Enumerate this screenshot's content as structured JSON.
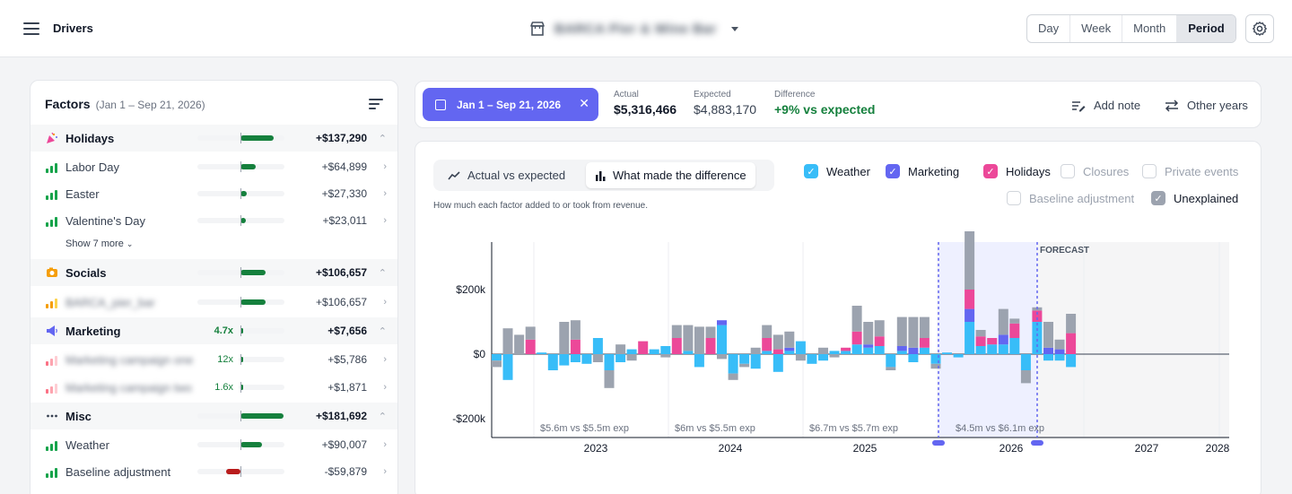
{
  "header": {
    "title": "Drivers",
    "store_name": "BARCA Pier & Wine Bar",
    "range_tabs": [
      "Day",
      "Week",
      "Month",
      "Period"
    ],
    "active_tab": "Period"
  },
  "factors": {
    "title": "Factors",
    "range": "(Jan 1 – Sep 21, 2026)",
    "show_more": "Show 7 more",
    "rows": [
      {
        "label": "Holidays",
        "value": "+$137,290",
        "fraction": 0.77,
        "group": true
      },
      {
        "label": "Labor Day",
        "value": "+$64,899",
        "fraction": 0.36
      },
      {
        "label": "Easter",
        "value": "+$27,330",
        "fraction": 0.15
      },
      {
        "label": "Valentine's Day",
        "value": "+$23,011",
        "fraction": 0.13
      },
      {
        "label": "Socials",
        "value": "+$106,657",
        "fraction": 0.59,
        "group": true
      },
      {
        "label": "BARCA_pier_bar",
        "value": "+$106,657",
        "fraction": 0.59,
        "blurred": true
      },
      {
        "label": "Marketing",
        "value": "+$7,656",
        "fraction": 0.04,
        "mult": "4.7x",
        "group": true
      },
      {
        "label": "Marketing campaign one",
        "value": "+$5,786",
        "fraction": 0.03,
        "mult": "12x",
        "blurred": true
      },
      {
        "label": "Marketing campaign two",
        "value": "+$1,871",
        "fraction": 0.01,
        "mult": "1.6x",
        "blurred": true
      },
      {
        "label": "Misc",
        "value": "+$181,692",
        "fraction": 1.0,
        "group": true
      },
      {
        "label": "Weather",
        "value": "+$90,007",
        "fraction": 0.5
      },
      {
        "label": "Baseline adjustment",
        "value": "-$59,879",
        "fraction": -0.33
      }
    ]
  },
  "summary": {
    "date_range": "Jan 1 – Sep 21, 2026",
    "actual_label": "Actual",
    "actual": "$5,316,466",
    "expected_label": "Expected",
    "expected": "$4,883,170",
    "difference_label": "Difference",
    "difference": "+9% vs expected",
    "add_note": "Add note",
    "other_years": "Other years"
  },
  "chart_panel": {
    "view_actual": "Actual vs expected",
    "view_difference": "What made the difference",
    "description": "How much each factor added to or took from revenue.",
    "filters": [
      {
        "label": "Weather",
        "checked": true,
        "color": "#38bdf8"
      },
      {
        "label": "Marketing",
        "checked": true,
        "color": "#6366f1"
      },
      {
        "label": "Holidays",
        "checked": true,
        "color": "#ec4899"
      },
      {
        "label": "Closures",
        "checked": false
      },
      {
        "label": "Private events",
        "checked": false
      },
      {
        "label": "Baseline adjustment",
        "checked": false
      },
      {
        "label": "Unexplained",
        "checked": true,
        "color": "#9ca3af"
      }
    ]
  },
  "chart_data": {
    "type": "bar",
    "stacked": true,
    "ylabel": "",
    "ylim": [
      -250000,
      340000
    ],
    "y_ticks": [
      "$200k",
      "$0",
      "-$200k"
    ],
    "y_tick_values": [
      200000,
      0,
      -200000
    ],
    "x_ticks": [
      "2023",
      "2024",
      "2025",
      "2026",
      "2027",
      "2028"
    ],
    "forecast_label": "FORECAST",
    "year_summaries": [
      {
        "year": "2023",
        "text": "$5.6m vs $5.5m exp"
      },
      {
        "year": "2024",
        "text": "$6m vs $5.5m exp"
      },
      {
        "year": "2025",
        "text": "$6.7m vs $5.7m exp"
      },
      {
        "year": "2026",
        "text": "$4.5m vs $6.1m exp"
      }
    ],
    "series_colors": {
      "weather": "#38bdf8",
      "marketing": "#6366f1",
      "holidays": "#ec4899",
      "unexplained": "#9ca3af"
    },
    "bars": [
      {
        "weather": -20000,
        "unexplained": -20000
      },
      {
        "weather": -80000,
        "unexplained": 80000
      },
      {
        "weather": 0,
        "unexplained": 60000
      },
      {
        "weather": 0,
        "holidays": 45000,
        "unexplained": 40000
      },
      {
        "weather": 5000
      },
      {
        "weather": -50000
      },
      {
        "weather": -35000,
        "unexplained": 100000
      },
      {
        "weather": -25000,
        "holidays": 45000,
        "unexplained": 60000
      },
      {
        "weather": -30000
      },
      {
        "weather": 50000,
        "unexplained": -25000
      },
      {
        "weather": -50000,
        "unexplained": -55000
      },
      {
        "weather": -25000,
        "unexplained": 30000
      },
      {
        "weather": 15000,
        "unexplained": -20000
      },
      {
        "weather": 0,
        "holidays": 40000
      },
      {
        "weather": 15000
      },
      {
        "weather": 25000,
        "unexplained": -10000
      },
      {
        "weather": 0,
        "holidays": 50000,
        "unexplained": 40000
      },
      {
        "weather": 10000,
        "unexplained": 80000
      },
      {
        "weather": -40000,
        "unexplained": 85000
      },
      {
        "weather": 0,
        "holidays": 50000,
        "unexplained": 35000
      },
      {
        "weather": 90000,
        "marketing": 15000,
        "unexplained": -15000
      },
      {
        "weather": -60000,
        "unexplained": -20000
      },
      {
        "weather": -30000,
        "unexplained": -10000
      },
      {
        "weather": -45000,
        "unexplained": 20000
      },
      {
        "weather": 10000,
        "holidays": 40000,
        "unexplained": 40000
      },
      {
        "weather": -55000,
        "holidays": 15000,
        "unexplained": 45000
      },
      {
        "weather": 10000,
        "marketing": 10000,
        "unexplained": 50000
      },
      {
        "weather": 40000,
        "unexplained": -20000
      },
      {
        "weather": -30000
      },
      {
        "weather": -20000,
        "unexplained": 20000
      },
      {
        "weather": 10000,
        "unexplained": -10000
      },
      {
        "weather": 10000,
        "holidays": 10000
      },
      {
        "weather": 30000,
        "holidays": 40000,
        "unexplained": 80000
      },
      {
        "weather": 20000,
        "marketing": 10000,
        "unexplained": 70000
      },
      {
        "weather": 25000,
        "holidays": 30000,
        "unexplained": 50000
      },
      {
        "weather": -40000,
        "unexplained": -10000
      },
      {
        "weather": 10000,
        "marketing": 15000,
        "unexplained": 90000
      },
      {
        "weather": -25000,
        "marketing": 20000,
        "unexplained": 95000
      },
      {
        "weather": 20000,
        "holidays": 30000,
        "unexplained": 65000
      },
      {
        "weather": -30000,
        "unexplained": -15000
      },
      {
        "weather": 5000
      },
      {
        "weather": -10000
      },
      {
        "weather": 100000,
        "marketing": 40000,
        "holidays": 60000,
        "unexplained": 210000
      },
      {
        "weather": 25000,
        "holidays": 30000,
        "unexplained": 20000
      },
      {
        "weather": 30000,
        "holidays": 20000
      },
      {
        "weather": 30000,
        "marketing": 30000,
        "unexplained": 80000
      },
      {
        "weather": 50000,
        "holidays": 45000,
        "unexplained": 15000
      },
      {
        "weather": -50000,
        "unexplained": -40000
      },
      {
        "weather": 100000,
        "holidays": 35000,
        "unexplained": 10000
      },
      {
        "weather": -20000,
        "marketing": 20000,
        "unexplained": 80000
      },
      {
        "weather": -20000,
        "marketing": 15000,
        "unexplained": 30000
      },
      {
        "weather": -40000,
        "holidays": 65000,
        "unexplained": 60000
      }
    ]
  }
}
